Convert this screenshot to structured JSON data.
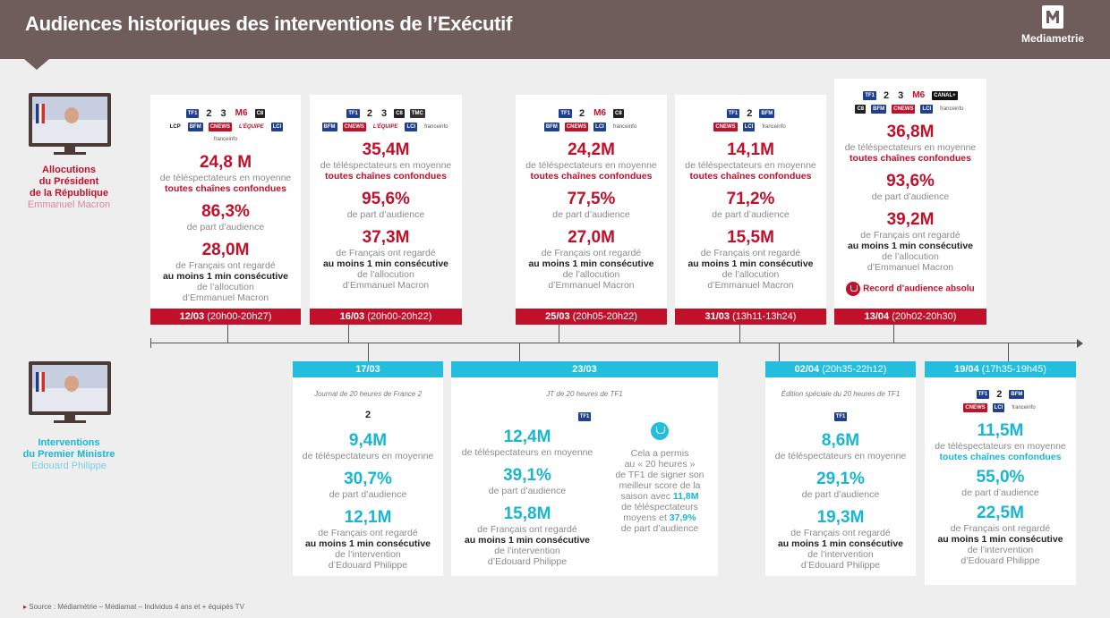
{
  "header": {
    "title": "Audiences historiques des interventions de l’Exécutif",
    "logo_text": "Mediametrie"
  },
  "president": {
    "l1": "Allocutions",
    "l2": "du Président",
    "l3": "de la République",
    "name": "Emmanuel Macron"
  },
  "pm": {
    "l1": "Interventions",
    "l2": "du Premier Ministre",
    "name": "Edouard Philippe"
  },
  "common": {
    "tele": "de téléspectateurs en moyenne",
    "all": "toutes chaînes confondues",
    "share": "de part d’audience",
    "fr": "de Français ont regardé",
    "min": "au moins 1 min consécutive",
    "alloc": "de l’allocution",
    "macron": "d’Emmanuel Macron",
    "interv": "de l’intervention",
    "philippe": "d’Edouard Philippe"
  },
  "cards_top": [
    {
      "v1": "24,8 M",
      "v2": "86,3%",
      "v3": "28,0M",
      "date": "12/03",
      "time": "(20h00-20h27)",
      "logos1": [
        "TF1",
        "2",
        "3",
        "M6",
        "C8"
      ],
      "logos2": [
        "LCP",
        "BFM",
        "CNEWS",
        "L’ÉQUIPE",
        "LCI",
        "franceinfo"
      ]
    },
    {
      "v1": "35,4M",
      "v2": "95,6%",
      "v3": "37,3M",
      "date": "16/03",
      "time": "(20h00-20h22)",
      "logos1": [
        "TF1",
        "2",
        "3",
        "C8",
        "TMC"
      ],
      "logos2": [
        "BFM",
        "CNEWS",
        "L’ÉQUIPE",
        "LCI",
        "franceinfo"
      ]
    },
    {
      "v1": "24,2M",
      "v2": "77,5%",
      "v3": "27,0M",
      "date": "25/03",
      "time": "(20h05-20h22)",
      "logos1": [
        "TF1",
        "2",
        "M6",
        "C8"
      ],
      "logos2": [
        "BFM",
        "CNEWS",
        "LCI",
        "franceinfo"
      ]
    },
    {
      "v1": "14,1M",
      "v2": "71,2%",
      "v3": "15,5M",
      "date": "31/03",
      "time": "(13h11-13h24)",
      "logos1": [
        "TF1",
        "2",
        "BFM"
      ],
      "logos2": [
        "CNEWS",
        "LCI",
        "franceinfo"
      ]
    },
    {
      "v1": "36,8M",
      "v2": "93,6%",
      "v3": "39,2M",
      "date": "13/04",
      "time": "(20h02-20h30)",
      "logos1": [
        "TF1",
        "2",
        "3",
        "M6",
        "CANAL+"
      ],
      "logos2": [
        "C8",
        "BFM",
        "CNEWS",
        "LCI",
        "franceinfo"
      ],
      "record": "Record d’audience absolu"
    }
  ],
  "cards_bottom": [
    {
      "date": "17/03",
      "time": "",
      "note": "Journal de 20 heures de France 2",
      "logo": "2",
      "v1": "9,4M",
      "v2": "30,7%",
      "v3": "12,1M"
    },
    {
      "date": "23/03",
      "time": "",
      "note": "JT de 20 heures de TF1",
      "logo": "TF1",
      "v1": "12,4M",
      "v2": "39,1%",
      "v3": "15,8M",
      "extra": {
        "l1": "Cela a permis",
        "l2": "au « 20 heures »",
        "l3": "de TF1 de signer son",
        "l4": "meilleur score de la",
        "l5": "saison avec",
        "val1": "11,8M",
        "l6": "de téléspectateurs",
        "l7": "moyens et",
        "val2": "37,9%",
        "l8": "de part d’audience"
      }
    },
    {
      "date": "02/04",
      "time": "(20h35-22h12)",
      "note": "Édition spéciale du 20 heures de TF1",
      "logo": "TF1",
      "v1": "8,6M",
      "v2": "29,1%",
      "v3": "19,3M"
    },
    {
      "date": "19/04",
      "time": "(17h35-19h45)",
      "note": "",
      "logos1": [
        "TF1",
        "2",
        "BFM"
      ],
      "logos2": [
        "CNEWS",
        "LCI",
        "franceinfo"
      ],
      "v1": "11,5M",
      "v2": "55,0%",
      "v3": "22,5M"
    }
  ],
  "source": "Source : Médiamétrie – Médiamat – Individus 4 ans et + équipés TV"
}
